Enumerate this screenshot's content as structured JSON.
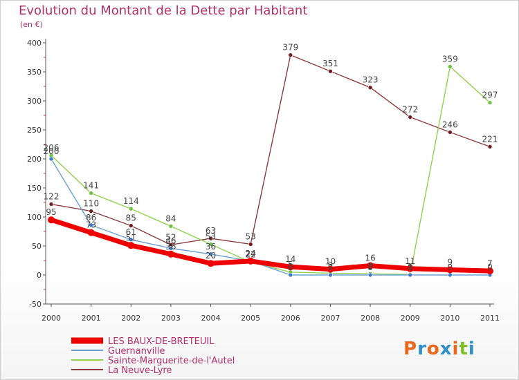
{
  "header": {
    "title": "Evolution du Montant de la Dette par Habitant",
    "unit": "(en €)"
  },
  "brand": {
    "name": "Proxiti",
    "letter_colors": [
      "#e7681e",
      "#2f8fc9",
      "#e7681e",
      "#2f8fc9",
      "#e7681e",
      "#7fbf2a",
      "#2f8fc9"
    ]
  },
  "chart_data": {
    "type": "line",
    "title": "Evolution du Montant de la Dette par Habitant",
    "ylabel": "(en €)",
    "xlabel": "",
    "ylim": [
      -50,
      400
    ],
    "yticks": [
      -50,
      0,
      50,
      100,
      150,
      200,
      250,
      300,
      350,
      400
    ],
    "categories": [
      "2000",
      "2001",
      "2002",
      "2003",
      "2004",
      "2005",
      "2006",
      "2007",
      "2008",
      "2009",
      "2010",
      "2011"
    ],
    "grid": false,
    "legend": "bottom-left",
    "series": [
      {
        "name": "LES BAUX-DE-BRETEUIL",
        "color": "#ee0000",
        "emphasis": true,
        "values": [
          95,
          73,
          51,
          36,
          20,
          24,
          14,
          10,
          16,
          11,
          9,
          7
        ],
        "labels": [
          "95",
          "73",
          "51",
          "36",
          "20",
          "24",
          "14",
          "10",
          "16",
          "11",
          "9",
          "7"
        ]
      },
      {
        "name": "Guernanville",
        "color": "#6b9fd1",
        "marker": "#3a78c8",
        "values": [
          200,
          86,
          61,
          46,
          36,
          24,
          0,
          0,
          0,
          0,
          0,
          0
        ],
        "labels": [
          "200",
          "86",
          "61",
          "46",
          "36",
          "24",
          "0",
          "0",
          "0",
          "0",
          "0",
          "0"
        ]
      },
      {
        "name": "Sainte-Marguerite-de-l'Autel",
        "color": "#92d050",
        "marker": "#6fc240",
        "values": [
          206,
          141,
          114,
          84,
          53,
          22,
          5,
          3,
          2,
          1,
          359,
          297
        ],
        "labels": [
          "206",
          "141",
          "114",
          "84",
          "53",
          "22",
          "5",
          "3",
          "2",
          "1",
          "359",
          "297"
        ]
      },
      {
        "name": "La Neuve-Lyre",
        "color": "#8a3c3c",
        "marker": "#6e1e1e",
        "values": [
          122,
          110,
          85,
          52,
          63,
          53,
          379,
          351,
          323,
          272,
          246,
          221
        ],
        "labels": [
          "122",
          "110",
          "85",
          "52",
          "63",
          "53",
          "379",
          "351",
          "323",
          "272",
          "246",
          "221"
        ]
      }
    ]
  }
}
